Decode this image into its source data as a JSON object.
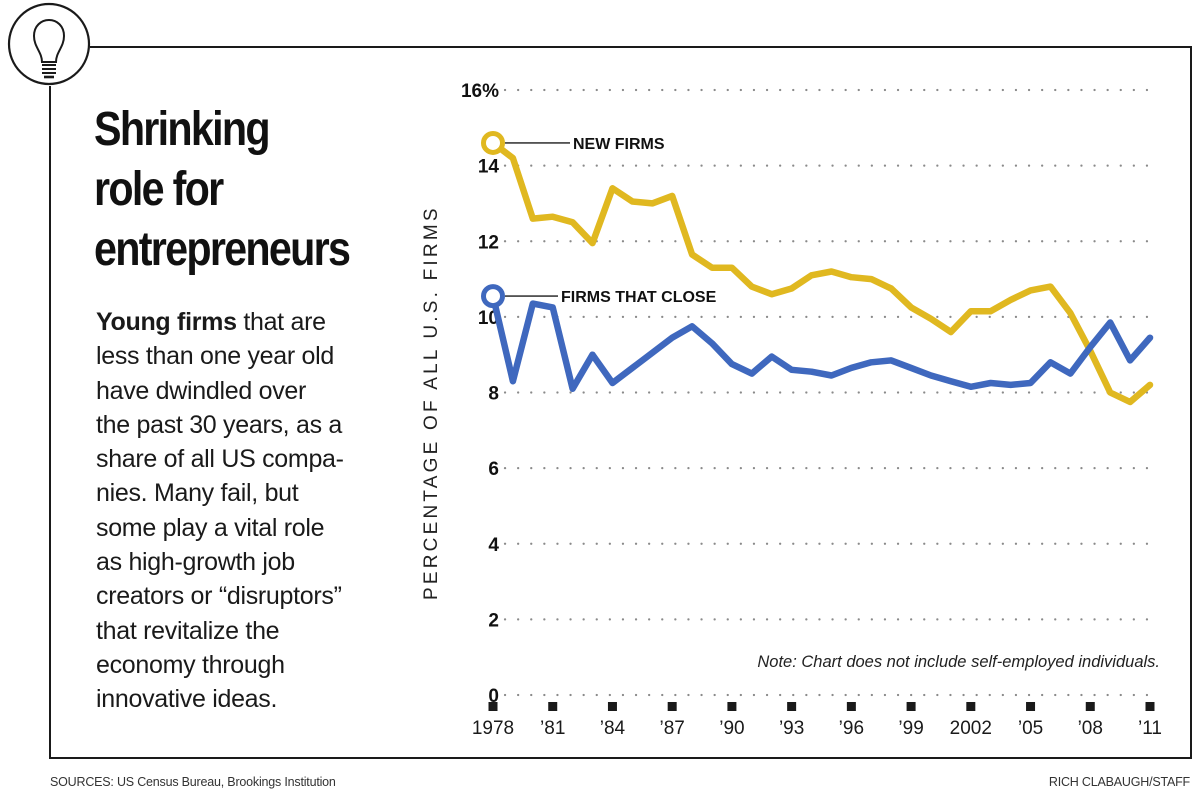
{
  "headline": [
    "Shrinking",
    "role for",
    "entrepreneurs"
  ],
  "body": {
    "bold_lead": "Young firms",
    "lines": [
      " that are",
      "less than one year old",
      "have dwindled over",
      "the past 30 years, as a",
      "share of all US compa-",
      "nies. Many fail, but",
      "some play a vital role",
      "as high-growth job",
      "creators or “disruptors”",
      "that revitalize the",
      "economy through",
      "innovative ideas."
    ]
  },
  "icon": "lightbulb-icon",
  "sources": "SOURCES: US Census Bureau, Brookings Institution",
  "credit": "RICH CLABAUGH/STAFF",
  "colors": {
    "new_firms": "#e0b820",
    "firms_that_close": "#3f68be",
    "frame": "#1a1a1a",
    "gridline": "#8a8a8a"
  },
  "chart_data": {
    "type": "line",
    "title": "Shrinking role for entrepreneurs",
    "xlabel": "",
    "ylabel": "PERCENTAGE OF ALL U.S. FIRMS",
    "ylim": [
      0,
      16
    ],
    "xlim": [
      1978,
      2011
    ],
    "y_ticks": [
      {
        "value": 0,
        "label": "0"
      },
      {
        "value": 2,
        "label": "2"
      },
      {
        "value": 4,
        "label": "4"
      },
      {
        "value": 6,
        "label": "6"
      },
      {
        "value": 8,
        "label": "8"
      },
      {
        "value": 10,
        "label": "10"
      },
      {
        "value": 12,
        "label": "12"
      },
      {
        "value": 14,
        "label": "14"
      },
      {
        "value": 16,
        "label": "16%"
      }
    ],
    "x_ticks": [
      {
        "value": 1978,
        "label": "1978"
      },
      {
        "value": 1981,
        "label": "’81"
      },
      {
        "value": 1984,
        "label": "’84"
      },
      {
        "value": 1987,
        "label": "’87"
      },
      {
        "value": 1990,
        "label": "’90"
      },
      {
        "value": 1993,
        "label": "’93"
      },
      {
        "value": 1996,
        "label": "’96"
      },
      {
        "value": 1999,
        "label": "’99"
      },
      {
        "value": 2002,
        "label": "2002"
      },
      {
        "value": 2005,
        "label": "’05"
      },
      {
        "value": 2008,
        "label": "’08"
      },
      {
        "value": 2011,
        "label": "’11"
      }
    ],
    "grid": "horizontal-dotted",
    "note": "Note: Chart does not include self-employed individuals.",
    "x": [
      1978,
      1979,
      1980,
      1981,
      1982,
      1983,
      1984,
      1985,
      1986,
      1987,
      1988,
      1989,
      1990,
      1991,
      1992,
      1993,
      1994,
      1995,
      1996,
      1997,
      1998,
      1999,
      2000,
      2001,
      2002,
      2003,
      2004,
      2005,
      2006,
      2007,
      2008,
      2009,
      2010,
      2011
    ],
    "series": [
      {
        "name": "NEW FIRMS",
        "color": "#e0b820",
        "values": [
          14.6,
          14.2,
          12.6,
          12.65,
          12.5,
          11.95,
          13.4,
          13.05,
          13.0,
          13.2,
          11.65,
          11.3,
          11.3,
          10.8,
          10.6,
          10.75,
          11.1,
          11.2,
          11.05,
          11.0,
          10.75,
          10.25,
          9.95,
          9.6,
          10.15,
          10.15,
          10.45,
          10.7,
          10.8,
          10.1,
          9.1,
          8.0,
          7.75,
          8.2
        ]
      },
      {
        "name": "FIRMS THAT CLOSE",
        "color": "#3f68be",
        "values": [
          10.55,
          8.3,
          10.35,
          10.25,
          8.1,
          9.0,
          8.25,
          8.65,
          9.05,
          9.45,
          9.75,
          9.3,
          8.75,
          8.5,
          8.95,
          8.6,
          8.55,
          8.45,
          8.65,
          8.8,
          8.85,
          8.65,
          8.45,
          8.3,
          8.15,
          8.25,
          8.2,
          8.25,
          8.8,
          8.5,
          9.2,
          9.85,
          8.85,
          9.45
        ]
      }
    ]
  }
}
